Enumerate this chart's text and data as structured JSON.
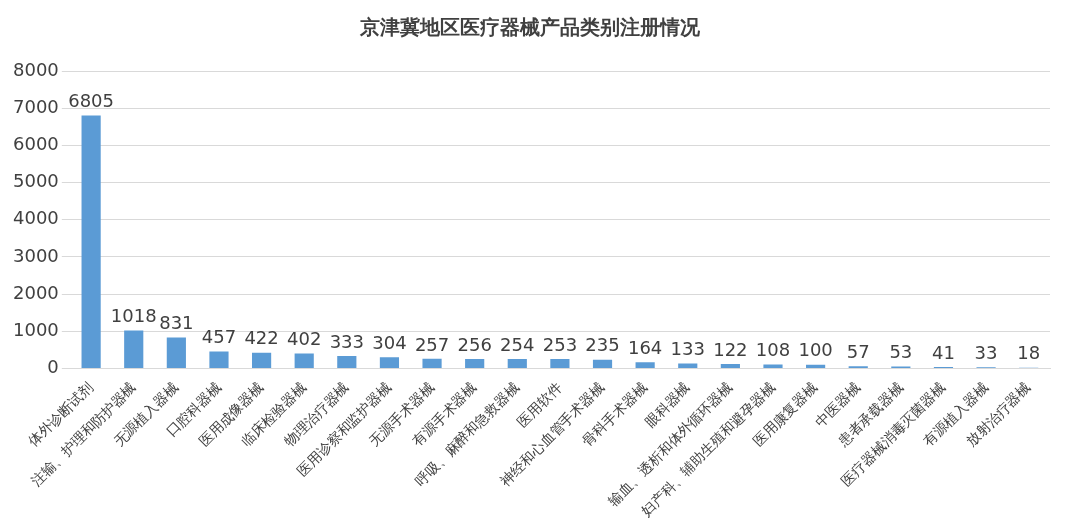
{
  "chart_data": {
    "type": "bar",
    "title": "京津冀地区医疗器械产品类别注册情况",
    "categories": [
      "体外诊断试剂",
      "注输、护理和防护器械",
      "无源植入器械",
      "口腔科器械",
      "医用成像器械",
      "临床检验器械",
      "物理治疗器械",
      "医用诊察和监护器械",
      "无源手术器械",
      "有源手术器械",
      "呼吸、麻醉和急救器械",
      "医用软件",
      "神经和心血管手术器械",
      "骨科手术器械",
      "眼科器械",
      "输血、透析和体外循环器械",
      "妇产科、辅助生殖和避孕器械",
      "医用康复器械",
      "中医器械",
      "患者承载器械",
      "医疗器械消毒灭菌器械",
      "有源植入器械",
      "放射治疗器械"
    ],
    "values": [
      6805,
      1018,
      831,
      457,
      422,
      402,
      333,
      304,
      257,
      256,
      254,
      253,
      235,
      164,
      133,
      122,
      108,
      100,
      57,
      53,
      41,
      33,
      18
    ],
    "color": "#5b9bd5",
    "ylim": [
      0,
      8000
    ],
    "yticks": [
      0,
      1000,
      2000,
      3000,
      4000,
      5000,
      6000,
      7000,
      8000
    ],
    "grid": "y",
    "data_labels": true
  }
}
